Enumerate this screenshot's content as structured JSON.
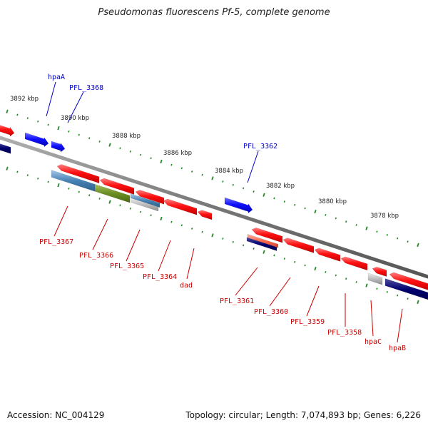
{
  "title": "Pseudomonas fluorescens Pf-5, complete genome",
  "footer": {
    "accession": "Accession: NC_004129",
    "summary": "Topology: circular; Length: 7,074,893 bp; Genes: 6,226"
  },
  "colors": {
    "forward_label": "#0000cc",
    "reverse_label": "#cc0000",
    "tick": "#228822",
    "backbone": "#888888"
  },
  "scale": {
    "labels": [
      "3892 kbp",
      "3890 kbp",
      "3888 kbp",
      "3886 kbp",
      "3884 kbp",
      "3882 kbp",
      "3880 kbp",
      "3878 kbp"
    ]
  },
  "labels": {
    "forward": [
      "hpaA",
      "PFL_3368",
      "PFL_3362"
    ],
    "reverse": [
      "PFL_3367",
      "PFL_3366",
      "PFL_3365",
      "PFL_3364",
      "dad",
      "PFL_3361",
      "PFL_3360",
      "PFL_3359",
      "PFL_3358",
      "hpaC",
      "hpaB"
    ]
  }
}
